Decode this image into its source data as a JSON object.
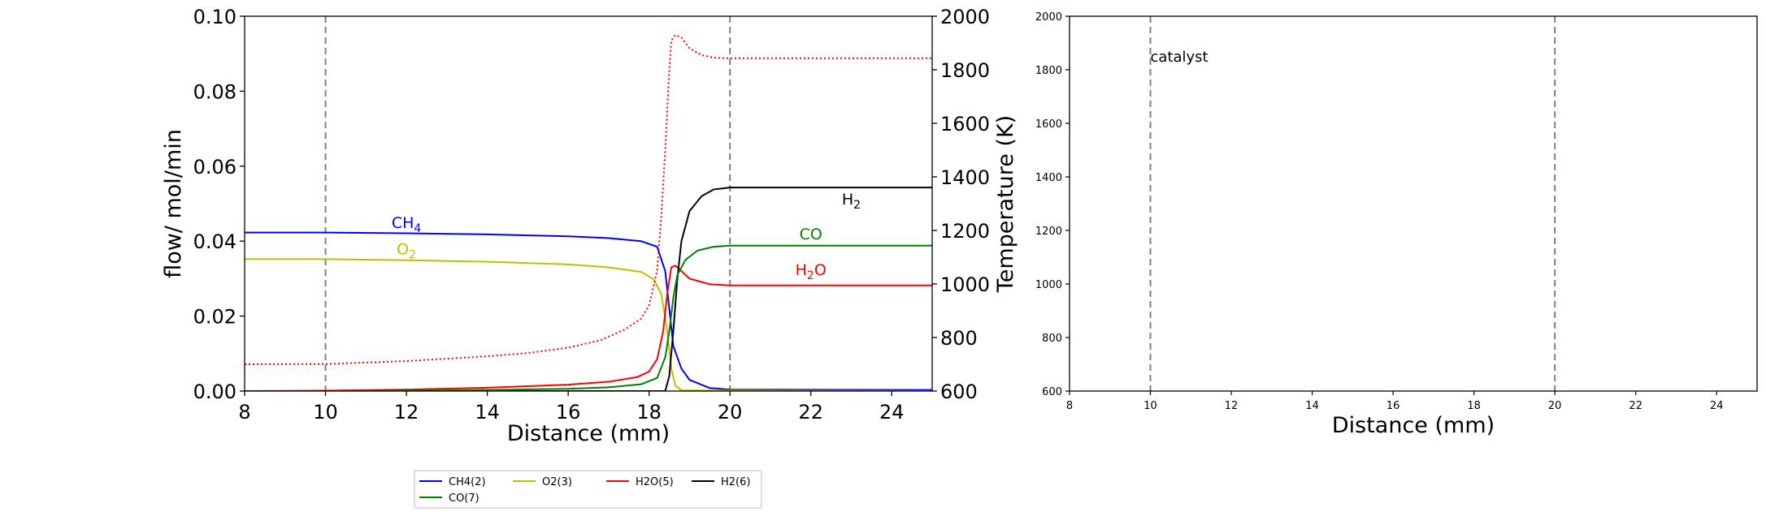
{
  "chart_data": [
    {
      "type": "line",
      "xlabel": "Distance (mm)",
      "ylabel": "flow/ mol/min",
      "y2label": "Temperature (K)",
      "xlim": [
        8,
        25
      ],
      "ylim": [
        0,
        0.1
      ],
      "y2lim": [
        600,
        2000
      ],
      "xticks": [
        "8",
        "10",
        "12",
        "14",
        "16",
        "18",
        "20",
        "22",
        "24"
      ],
      "yticks": [
        "0.00",
        "0.02",
        "0.04",
        "0.06",
        "0.08",
        "0.10"
      ],
      "y2ticks": [
        "600",
        "800",
        "1000",
        "1200",
        "1400",
        "1600",
        "1800",
        "2000"
      ],
      "vlines": [
        10,
        20
      ],
      "grid": false,
      "series": [
        {
          "name": "CH4(2)",
          "color": "#0000ff",
          "style": "solid",
          "points": [
            [
              8,
              0.0423
            ],
            [
              10,
              0.0423
            ],
            [
              12,
              0.0421
            ],
            [
              14,
              0.0418
            ],
            [
              16,
              0.0413
            ],
            [
              17,
              0.0408
            ],
            [
              17.8,
              0.04
            ],
            [
              18.2,
              0.0385
            ],
            [
              18.4,
              0.032
            ],
            [
              18.5,
              0.022
            ],
            [
              18.6,
              0.012
            ],
            [
              18.8,
              0.006
            ],
            [
              19.0,
              0.003
            ],
            [
              19.5,
              0.0008
            ],
            [
              20,
              0.0004
            ],
            [
              25,
              0.0003
            ]
          ]
        },
        {
          "name": "O2(3)",
          "color": "#bfbf00",
          "style": "solid",
          "points": [
            [
              8,
              0.0352
            ],
            [
              10,
              0.0352
            ],
            [
              12,
              0.0349
            ],
            [
              14,
              0.0345
            ],
            [
              16,
              0.0338
            ],
            [
              17,
              0.033
            ],
            [
              17.8,
              0.0318
            ],
            [
              18.1,
              0.03
            ],
            [
              18.3,
              0.026
            ],
            [
              18.45,
              0.016
            ],
            [
              18.55,
              0.006
            ],
            [
              18.65,
              0.0015
            ],
            [
              18.8,
              0.0002
            ],
            [
              25,
              0.0
            ]
          ]
        },
        {
          "name": "H2O(5)",
          "color": "#ff0000",
          "style": "solid",
          "points": [
            [
              8,
              0.0
            ],
            [
              10,
              0.0001
            ],
            [
              12,
              0.0004
            ],
            [
              14,
              0.0009
            ],
            [
              16,
              0.0017
            ],
            [
              17,
              0.0025
            ],
            [
              17.7,
              0.0037
            ],
            [
              18.0,
              0.0052
            ],
            [
              18.2,
              0.0085
            ],
            [
              18.35,
              0.016
            ],
            [
              18.45,
              0.026
            ],
            [
              18.55,
              0.033
            ],
            [
              18.65,
              0.0335
            ],
            [
              18.8,
              0.032
            ],
            [
              19.0,
              0.03
            ],
            [
              19.5,
              0.0285
            ],
            [
              20,
              0.0282
            ],
            [
              25,
              0.0282
            ]
          ]
        },
        {
          "name": "H2(6)",
          "color": "#000000",
          "style": "solid",
          "points": [
            [
              8,
              0.0
            ],
            [
              18.4,
              0.0
            ],
            [
              18.5,
              0.004
            ],
            [
              18.6,
              0.016
            ],
            [
              18.7,
              0.03
            ],
            [
              18.8,
              0.04
            ],
            [
              19.0,
              0.048
            ],
            [
              19.3,
              0.052
            ],
            [
              19.6,
              0.0538
            ],
            [
              20,
              0.0543
            ],
            [
              25,
              0.0543
            ]
          ]
        },
        {
          "name": "CO(7)",
          "color": "#008000",
          "style": "solid",
          "points": [
            [
              8,
              0.0
            ],
            [
              10,
              0.0
            ],
            [
              12,
              0.0001
            ],
            [
              14,
              0.0003
            ],
            [
              16,
              0.0006
            ],
            [
              17,
              0.001
            ],
            [
              17.8,
              0.0018
            ],
            [
              18.2,
              0.0035
            ],
            [
              18.4,
              0.009
            ],
            [
              18.5,
              0.016
            ],
            [
              18.6,
              0.025
            ],
            [
              18.7,
              0.031
            ],
            [
              18.9,
              0.035
            ],
            [
              19.2,
              0.0375
            ],
            [
              19.6,
              0.0385
            ],
            [
              20,
              0.0388
            ],
            [
              25,
              0.0388
            ]
          ]
        },
        {
          "name": "Temperature",
          "color": "#ff0000",
          "style": "dotted",
          "axis": "y2",
          "points": [
            [
              8,
              700
            ],
            [
              10,
              701
            ],
            [
              12,
              712
            ],
            [
              14,
              730
            ],
            [
              15,
              742
            ],
            [
              16,
              762
            ],
            [
              16.8,
              790
            ],
            [
              17.4,
              830
            ],
            [
              17.8,
              870
            ],
            [
              18.0,
              920
            ],
            [
              18.2,
              1050
            ],
            [
              18.3,
              1250
            ],
            [
              18.4,
              1500
            ],
            [
              18.5,
              1800
            ],
            [
              18.55,
              1910
            ],
            [
              18.65,
              1930
            ],
            [
              18.8,
              1920
            ],
            [
              19.0,
              1880
            ],
            [
              19.3,
              1855
            ],
            [
              19.6,
              1845
            ],
            [
              20,
              1843
            ],
            [
              25,
              1843
            ]
          ]
        }
      ],
      "annotations": [
        {
          "base": "CH",
          "sub": "4",
          "color": "#0000ff",
          "x": 12.0,
          "y": 0.0435
        },
        {
          "base": "O",
          "sub": "2",
          "color": "#bfbf00",
          "x": 12.0,
          "y": 0.0365
        },
        {
          "base": "H",
          "sub": "2",
          "color": "#000000",
          "x": 23.0,
          "y": 0.0498
        },
        {
          "base": "CO",
          "sub": "",
          "color": "#008000",
          "x": 22.0,
          "y": 0.0405
        },
        {
          "base": "H",
          "sub": "2",
          "tail": "O",
          "color": "#ff0000",
          "x": 22.0,
          "y": 0.0309
        }
      ],
      "legend": {
        "placement": "below",
        "columns": 4
      },
      "twin_axis": "right"
    },
    {
      "type": "line",
      "xlabel": "Distance (mm)",
      "xlim": [
        8,
        25
      ],
      "ylim": [
        600,
        2000
      ],
      "xticks": [
        "8",
        "10",
        "12",
        "14",
        "16",
        "18",
        "20",
        "22",
        "24"
      ],
      "yticks": [
        "600",
        "800",
        "1000",
        "1200",
        "1400",
        "1600",
        "1800",
        "2000"
      ],
      "vlines": [
        10,
        20
      ],
      "grid": false,
      "series": [],
      "annotations": [
        {
          "text": "catalyst",
          "color": "#000000",
          "x": 10.0,
          "y": 1830
        }
      ]
    }
  ]
}
